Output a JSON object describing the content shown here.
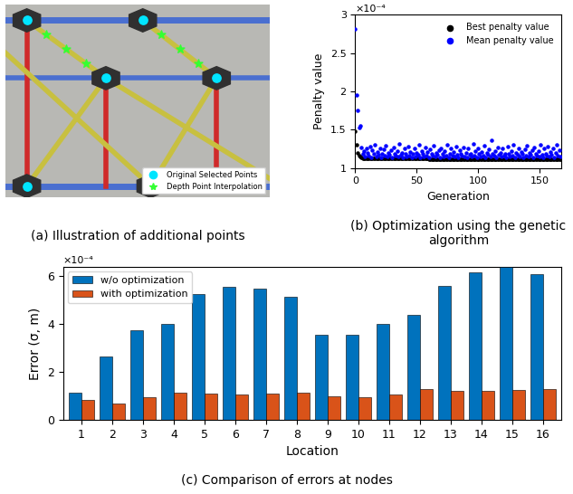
{
  "chart_data": [
    {
      "type": "illustration",
      "caption": "(a) Illustration of additional points",
      "legend": "lower right",
      "series": [
        {
          "name": "Original Selected Points",
          "color": "#00e5ff",
          "marker": "circle"
        },
        {
          "name": "Depth Point Interpolation",
          "color": "#33ff33",
          "marker": "star"
        }
      ]
    },
    {
      "type": "scatter",
      "caption": "(b) Optimization using the genetic algorithm",
      "xlabel": "Generation",
      "ylabel": "Penalty value",
      "annotation": "×10⁻⁴",
      "legend": "upper right",
      "xlim": [
        0,
        168
      ],
      "xticks": [
        0,
        50,
        100,
        150
      ],
      "ylim": [
        1,
        3
      ],
      "yticks": [
        1,
        1.5,
        2,
        2.5,
        3
      ],
      "x": [
        0,
        1,
        2,
        3,
        4,
        5,
        6,
        7,
        8,
        9,
        10,
        11,
        12,
        13,
        14,
        15,
        16,
        17,
        18,
        19,
        20,
        21,
        22,
        23,
        24,
        25,
        26,
        27,
        28,
        29,
        30,
        31,
        32,
        33,
        34,
        35,
        36,
        37,
        38,
        39,
        40,
        41,
        42,
        43,
        44,
        45,
        46,
        47,
        48,
        49,
        50,
        51,
        52,
        53,
        54,
        55,
        56,
        57,
        58,
        59,
        60,
        61,
        62,
        63,
        64,
        65,
        66,
        67,
        68,
        69,
        70,
        71,
        72,
        73,
        74,
        75,
        76,
        77,
        78,
        79,
        80,
        81,
        82,
        83,
        84,
        85,
        86,
        87,
        88,
        89,
        90,
        91,
        92,
        93,
        94,
        95,
        96,
        97,
        98,
        99,
        100,
        101,
        102,
        103,
        104,
        105,
        106,
        107,
        108,
        109,
        110,
        111,
        112,
        113,
        114,
        115,
        116,
        117,
        118,
        119,
        120,
        121,
        122,
        123,
        124,
        125,
        126,
        127,
        128,
        129,
        130,
        131,
        132,
        133,
        134,
        135,
        136,
        137,
        138,
        139,
        140,
        141,
        142,
        143,
        144,
        145,
        146,
        147,
        148,
        149,
        150,
        151,
        152,
        153,
        154,
        155,
        156,
        157,
        158,
        159,
        160,
        161,
        162,
        163,
        164,
        165,
        166,
        167
      ],
      "series": [
        {
          "name": "Best penalty value",
          "color": "#000000",
          "marker": "circle",
          "values": [
            1.48,
            1.3,
            1.2,
            1.16,
            1.15,
            1.14,
            1.13,
            1.13,
            1.13,
            1.12,
            1.12,
            1.12,
            1.12,
            1.12,
            1.12,
            1.12,
            1.12,
            1.12,
            1.12,
            1.12,
            1.12,
            1.12,
            1.12,
            1.12,
            1.12,
            1.12,
            1.12,
            1.12,
            1.12,
            1.12,
            1.12,
            1.12,
            1.12,
            1.12,
            1.12,
            1.12,
            1.12,
            1.12,
            1.12,
            1.12,
            1.12,
            1.12,
            1.12,
            1.12,
            1.12,
            1.12,
            1.12,
            1.12,
            1.12,
            1.12,
            1.12,
            1.12,
            1.12,
            1.12,
            1.12,
            1.12,
            1.12,
            1.12,
            1.12,
            1.12,
            1.11,
            1.11,
            1.11,
            1.11,
            1.11,
            1.11,
            1.11,
            1.11,
            1.11,
            1.11,
            1.11,
            1.11,
            1.11,
            1.11,
            1.11,
            1.11,
            1.11,
            1.11,
            1.11,
            1.11,
            1.11,
            1.11,
            1.11,
            1.11,
            1.11,
            1.11,
            1.11,
            1.11,
            1.11,
            1.11,
            1.11,
            1.11,
            1.11,
            1.11,
            1.11,
            1.11,
            1.11,
            1.11,
            1.11,
            1.11,
            1.11,
            1.11,
            1.11,
            1.11,
            1.11,
            1.11,
            1.11,
            1.11,
            1.11,
            1.11,
            1.11,
            1.11,
            1.11,
            1.11,
            1.11,
            1.11,
            1.11,
            1.11,
            1.11,
            1.11,
            1.11,
            1.11,
            1.11,
            1.11,
            1.11,
            1.11,
            1.11,
            1.11,
            1.11,
            1.11,
            1.11,
            1.11,
            1.11,
            1.11,
            1.11,
            1.11,
            1.11,
            1.11,
            1.11,
            1.11,
            1.11,
            1.11,
            1.11,
            1.11,
            1.11,
            1.11,
            1.11,
            1.11,
            1.11,
            1.11,
            1.11,
            1.11,
            1.11,
            1.11,
            1.11,
            1.11,
            1.11,
            1.11,
            1.11,
            1.11,
            1.11,
            1.11,
            1.11,
            1.11,
            1.11,
            1.11,
            1.11,
            1.11
          ]
        },
        {
          "name": "Mean penalty value",
          "color": "#0000ff",
          "marker": "circle",
          "values": [
            2.82,
            1.95,
            1.75,
            1.53,
            1.55,
            1.27,
            1.18,
            1.22,
            1.15,
            1.25,
            1.2,
            1.16,
            1.28,
            1.14,
            1.23,
            1.18,
            1.3,
            1.15,
            1.21,
            1.17,
            1.26,
            1.14,
            1.19,
            1.24,
            1.16,
            1.29,
            1.15,
            1.2,
            1.17,
            1.23,
            1.14,
            1.27,
            1.18,
            1.16,
            1.22,
            1.15,
            1.31,
            1.17,
            1.2,
            1.14,
            1.25,
            1.18,
            1.15,
            1.28,
            1.16,
            1.21,
            1.14,
            1.19,
            1.26,
            1.15,
            1.2,
            1.17,
            1.3,
            1.14,
            1.22,
            1.18,
            1.15,
            1.27,
            1.16,
            1.21,
            1.14,
            1.24,
            1.18,
            1.16,
            1.29,
            1.15,
            1.2,
            1.17,
            1.23,
            1.14,
            1.26,
            1.18,
            1.15,
            1.22,
            1.16,
            1.3,
            1.14,
            1.19,
            1.25,
            1.16,
            1.21,
            1.15,
            1.28,
            1.17,
            1.14,
            1.23,
            1.18,
            1.16,
            1.27,
            1.15,
            1.2,
            1.14,
            1.25,
            1.17,
            1.19,
            1.15,
            1.31,
            1.16,
            1.22,
            1.14,
            1.26,
            1.18,
            1.15,
            1.21,
            1.16,
            1.29,
            1.14,
            1.2,
            1.17,
            1.24,
            1.15,
            1.36,
            1.18,
            1.16,
            1.22,
            1.14,
            1.27,
            1.17,
            1.2,
            1.15,
            1.25,
            1.16,
            1.19,
            1.14,
            1.28,
            1.18,
            1.15,
            1.22,
            1.16,
            1.3,
            1.14,
            1.2,
            1.17,
            1.26,
            1.15,
            1.21,
            1.18,
            1.14,
            1.24,
            1.16,
            1.29,
            1.15,
            1.2,
            1.17,
            1.23,
            1.14,
            1.27,
            1.18,
            1.16,
            1.22,
            1.15,
            1.3,
            1.17,
            1.14,
            1.25,
            1.19,
            1.16,
            1.28,
            1.15,
            1.21,
            1.17,
            1.26,
            1.14,
            1.2,
            1.3,
            1.16,
            1.23,
            1.15
          ]
        }
      ]
    },
    {
      "type": "bar",
      "caption": "(c) Comparison of errors at nodes",
      "xlabel": "Location",
      "ylabel": "Error (σ, m)",
      "annotation": "×10⁻⁴",
      "legend": "upper left",
      "categories": [
        "1",
        "2",
        "3",
        "4",
        "5",
        "6",
        "7",
        "8",
        "9",
        "10",
        "11",
        "12",
        "13",
        "14",
        "15",
        "16"
      ],
      "ylim": [
        0,
        6.4
      ],
      "yticks": [
        0,
        2,
        4,
        6
      ],
      "series": [
        {
          "name": "w/o optimization",
          "color": "#0072bd",
          "values": [
            1.15,
            2.65,
            3.75,
            4.0,
            5.25,
            5.55,
            5.5,
            5.15,
            3.55,
            3.55,
            4.0,
            4.4,
            5.6,
            6.15,
            6.4,
            6.1
          ]
        },
        {
          "name": "with optimization",
          "color": "#d95319",
          "values": [
            0.85,
            0.7,
            0.95,
            1.15,
            1.1,
            1.05,
            1.1,
            1.15,
            1.0,
            0.95,
            1.05,
            1.3,
            1.2,
            1.2,
            1.25,
            1.3
          ]
        }
      ]
    }
  ]
}
